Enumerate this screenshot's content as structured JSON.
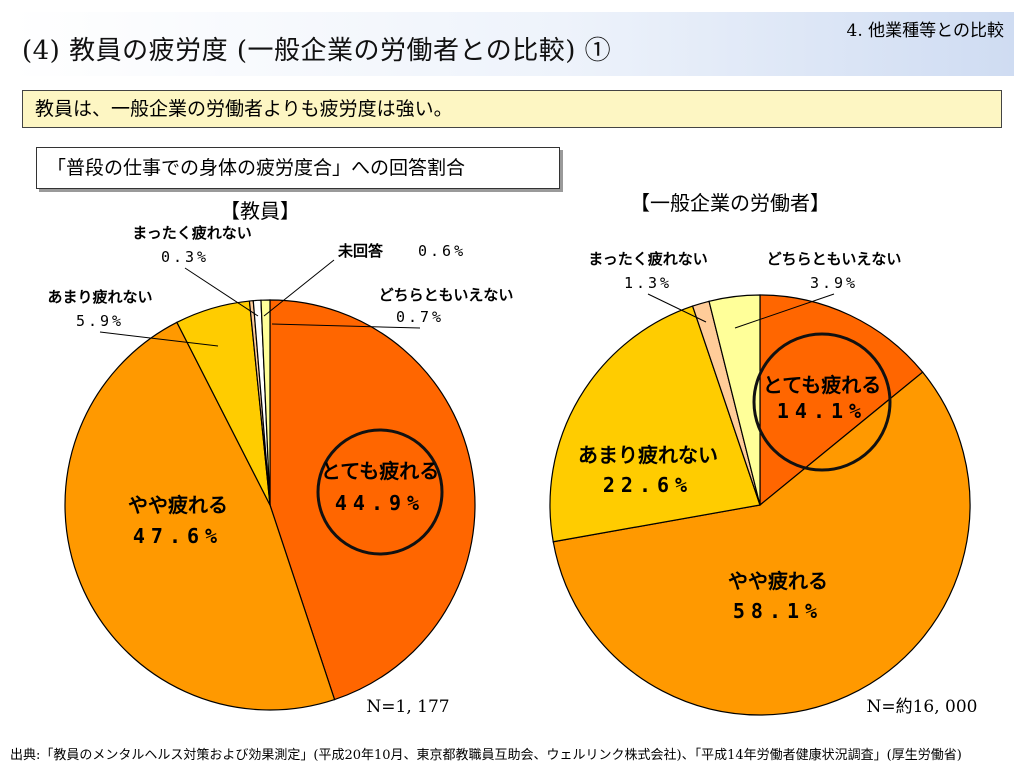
{
  "header": {
    "title": "(4) 教員の疲労度 (一般企業の労働者との比較) ①",
    "section": "4. 他業種等との比較"
  },
  "summary": "教員は、一般企業の労働者よりも疲労度は強い。",
  "question": "「普段の仕事での身体の疲労度合」への回答割合",
  "source": "出典:「教員のメンタルヘルス対策および効果測定」(平成20年10月、東京都教職員互助会、ウェルリンク株式会社)、「平成14年労働者健康状況調査」(厚生労働省)",
  "colors": {
    "totemo": "#ff6600",
    "yaya": "#ff9900",
    "amari": "#ffcc00",
    "mattaku": "#ffcc99",
    "dochira": "#ffff99",
    "mikaito": "#ffffff",
    "outline": "#000000"
  },
  "chart_data": [
    {
      "type": "pie",
      "title": "【教員】",
      "n_label": "N=1, 177",
      "slices": [
        {
          "key": "totemo",
          "label": "とても疲れる",
          "value": 44.9,
          "value_label": "44.9%",
          "color": "#ff6600",
          "highlighted": true
        },
        {
          "key": "yaya",
          "label": "やや疲れる",
          "value": 47.6,
          "value_label": "47.6%",
          "color": "#ff9900"
        },
        {
          "key": "amari",
          "label": "あまり疲れない",
          "value": 5.9,
          "value_label": "5.9%",
          "color": "#ffcc00"
        },
        {
          "key": "mattaku",
          "label": "まったく疲れない",
          "value": 0.3,
          "value_label": "0.3%",
          "color": "#ffcc99"
        },
        {
          "key": "mikaito",
          "label": "未回答",
          "value": 0.6,
          "value_label": "0.6%",
          "color": "#ffffff"
        },
        {
          "key": "dochira",
          "label": "どちらともいえない",
          "value": 0.7,
          "value_label": "0.7%",
          "color": "#ffff99"
        }
      ]
    },
    {
      "type": "pie",
      "title": "【一般企業の労働者】",
      "n_label": "N=約16, 000",
      "slices": [
        {
          "key": "totemo",
          "label": "とても疲れる",
          "value": 14.1,
          "value_label": "14.1%",
          "color": "#ff6600",
          "highlighted": true
        },
        {
          "key": "yaya",
          "label": "やや疲れる",
          "value": 58.1,
          "value_label": "58.1%",
          "color": "#ff9900"
        },
        {
          "key": "amari",
          "label": "あまり疲れない",
          "value": 22.6,
          "value_label": "22.6%",
          "color": "#ffcc00"
        },
        {
          "key": "mattaku",
          "label": "まったく疲れない",
          "value": 1.3,
          "value_label": "1.3%",
          "color": "#ffcc99"
        },
        {
          "key": "dochira",
          "label": "どちらともいえない",
          "value": 3.9,
          "value_label": "3.9%",
          "color": "#ffff99"
        }
      ]
    }
  ]
}
